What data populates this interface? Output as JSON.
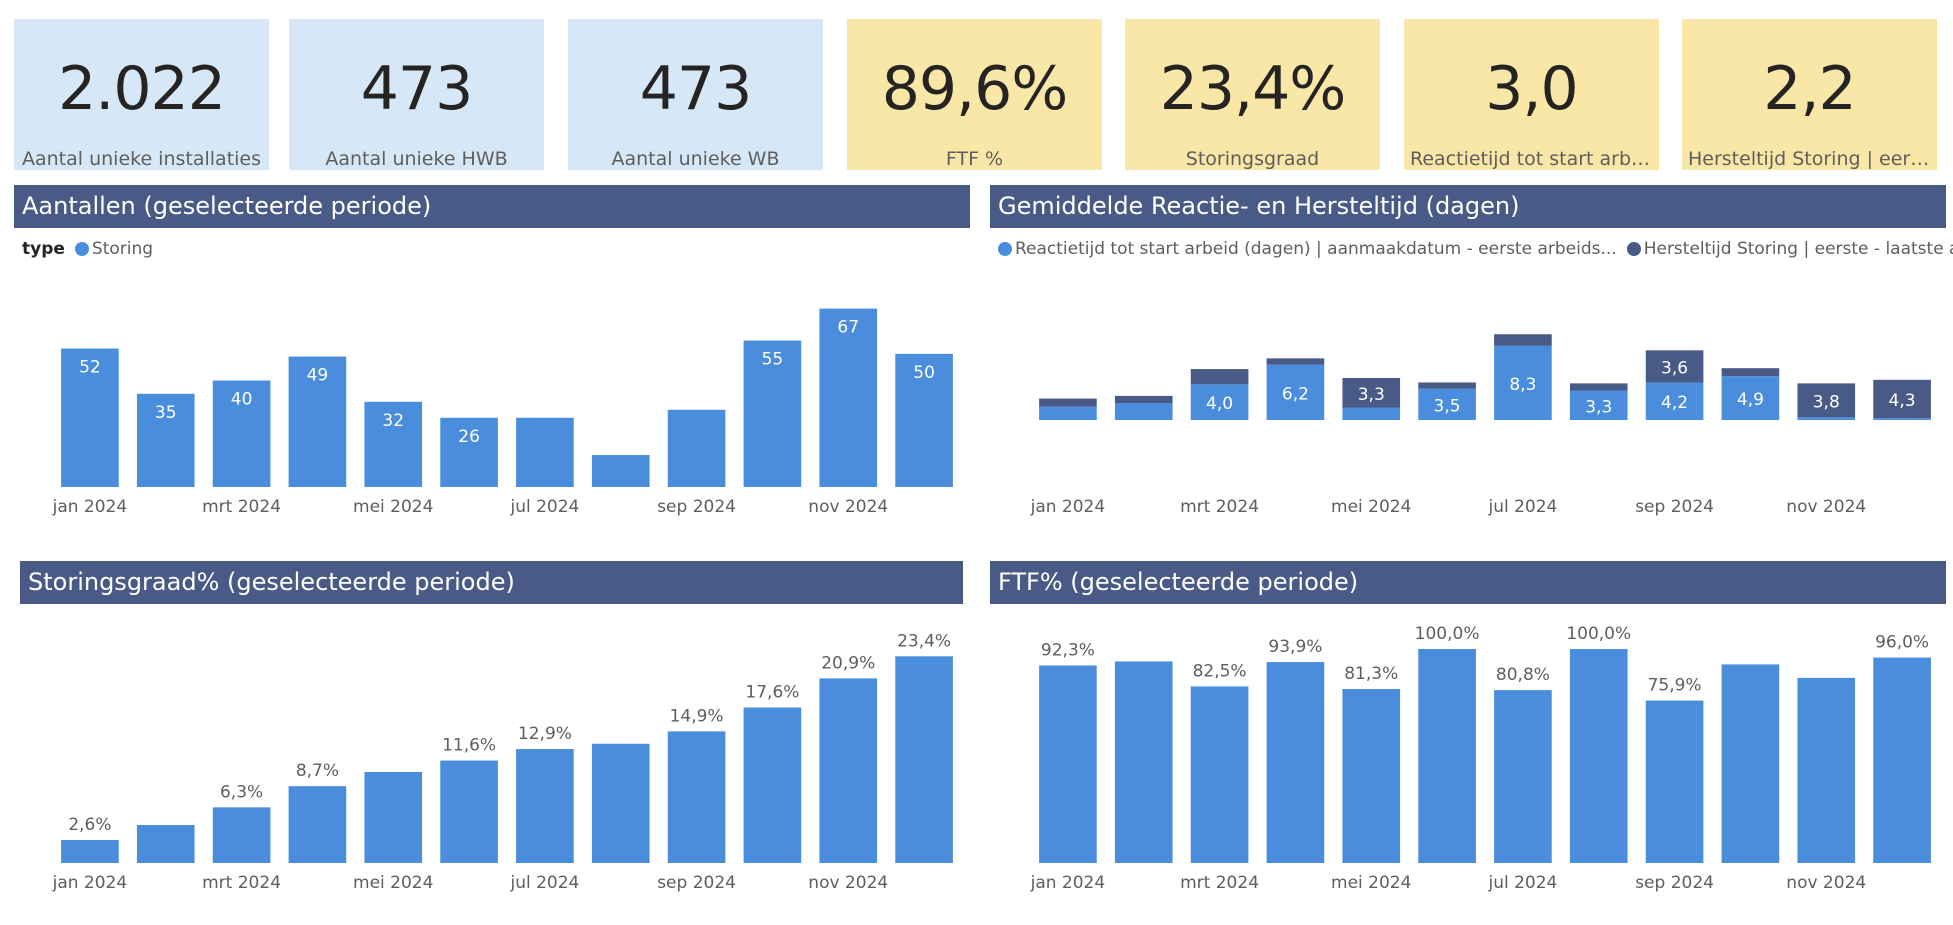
{
  "kpis": [
    {
      "value": "2.022",
      "label": "Aantal unieke installaties",
      "tone": "blue"
    },
    {
      "value": "473",
      "label": "Aantal unieke HWB",
      "tone": "blue"
    },
    {
      "value": "473",
      "label": "Aantal unieke WB",
      "tone": "blue"
    },
    {
      "value": "89,6%",
      "label": "FTF %",
      "tone": "yellow"
    },
    {
      "value": "23,4%",
      "label": "Storingsgraad",
      "tone": "yellow"
    },
    {
      "value": "3,0",
      "label": "Reactietijd tot start arbei...",
      "tone": "yellow"
    },
    {
      "value": "2,2",
      "label": "Hersteltijd Storing | eerst...",
      "tone": "yellow"
    }
  ],
  "panels": {
    "aantallen": {
      "title": "Aantallen (geselecteerde periode)",
      "legend_title": "type",
      "legend_items": [
        "Storing"
      ]
    },
    "reactie": {
      "title": "Gemiddelde Reactie- en Hersteltijd (dagen)",
      "legend_items": [
        "Reactietijd tot start arbeid (dagen) | aanmaakdatum - eerste arbeids...",
        "Hersteltijd Storing | eerste - laatste ar..."
      ]
    },
    "storingsgraad": {
      "title": "Storingsgraad% (geselecteerde periode)"
    },
    "ftf": {
      "title": "FTF% (geselecteerde periode)"
    }
  },
  "colors": {
    "primary": "#4a8ddc",
    "secondary": "#4a5a86",
    "header": "#4a5a86"
  },
  "chart_data": [
    {
      "id": "aantallen",
      "type": "bar",
      "categories": [
        "jan 2024",
        "feb 2024",
        "mrt 2024",
        "apr 2024",
        "mei 2024",
        "jun 2024",
        "jul 2024",
        "aug 2024",
        "sep 2024",
        "okt 2024",
        "nov 2024",
        "dec 2024"
      ],
      "x_tick_labels": [
        "jan 2024",
        "",
        "mrt 2024",
        "",
        "mei 2024",
        "",
        "jul 2024",
        "",
        "sep 2024",
        "",
        "nov 2024",
        ""
      ],
      "series": [
        {
          "name": "Storing",
          "values": [
            52,
            35,
            40,
            49,
            32,
            26,
            26,
            12,
            29,
            55,
            67,
            50
          ]
        }
      ],
      "data_labels": [
        "52",
        "35",
        "40",
        "49",
        "32",
        "26",
        "",
        "",
        "",
        "55",
        "67",
        "50"
      ],
      "ylim": [
        0,
        80
      ]
    },
    {
      "id": "reactie",
      "type": "bar",
      "stacked": true,
      "categories": [
        "jan 2024",
        "feb 2024",
        "mrt 2024",
        "apr 2024",
        "mei 2024",
        "jun 2024",
        "jul 2024",
        "aug 2024",
        "sep 2024",
        "okt 2024",
        "nov 2024",
        "dec 2024"
      ],
      "x_tick_labels": [
        "jan 2024",
        "",
        "mrt 2024",
        "",
        "mei 2024",
        "",
        "jul 2024",
        "",
        "sep 2024",
        "",
        "nov 2024",
        ""
      ],
      "series": [
        {
          "name": "Reactietijd tot start arbeid (dagen) | aanmaakdatum - eerste arbeids...",
          "values": [
            1.5,
            1.9,
            4.0,
            6.2,
            1.4,
            3.5,
            8.3,
            3.3,
            4.2,
            4.9,
            0.3,
            0.2
          ],
          "data_labels": [
            "",
            "",
            "4,0",
            "6,2",
            "",
            "3,5",
            "8,3",
            "3,3",
            "4,2",
            "4,9",
            "",
            ""
          ]
        },
        {
          "name": "Hersteltijd Storing | eerste - laatste ar...",
          "values": [
            0.9,
            0.8,
            1.7,
            0.7,
            3.3,
            0.7,
            1.3,
            0.8,
            3.6,
            0.9,
            3.8,
            4.3
          ],
          "data_labels": [
            "",
            "",
            "",
            "",
            "3,3",
            "",
            "",
            "",
            "3,6",
            "",
            "3,8",
            "4,3"
          ]
        }
      ],
      "ylim": [
        -3,
        12
      ]
    },
    {
      "id": "storingsgraad",
      "type": "bar",
      "categories": [
        "jan 2024",
        "feb 2024",
        "mrt 2024",
        "apr 2024",
        "mei 2024",
        "jun 2024",
        "jul 2024",
        "aug 2024",
        "sep 2024",
        "okt 2024",
        "nov 2024",
        "dec 2024"
      ],
      "x_tick_labels": [
        "jan 2024",
        "",
        "mrt 2024",
        "",
        "mei 2024",
        "",
        "jul 2024",
        "",
        "sep 2024",
        "",
        "nov 2024",
        ""
      ],
      "series": [
        {
          "name": "Storingsgraad",
          "values": [
            2.6,
            4.3,
            6.3,
            8.7,
            10.3,
            11.6,
            12.9,
            13.5,
            14.9,
            17.6,
            20.9,
            23.4
          ]
        }
      ],
      "data_labels": [
        "2,6%",
        "",
        "6,3%",
        "8,7%",
        "",
        "11,6%",
        "12,9%",
        "",
        "14,9%",
        "17,6%",
        "20,9%",
        "23,4%"
      ],
      "ylim": [
        0,
        24
      ]
    },
    {
      "id": "ftf",
      "type": "bar",
      "categories": [
        "jan 2024",
        "feb 2024",
        "mrt 2024",
        "apr 2024",
        "mei 2024",
        "jun 2024",
        "jul 2024",
        "aug 2024",
        "sep 2024",
        "okt 2024",
        "nov 2024",
        "dec 2024"
      ],
      "x_tick_labels": [
        "jan 2024",
        "",
        "mrt 2024",
        "",
        "mei 2024",
        "",
        "jul 2024",
        "",
        "sep 2024",
        "",
        "nov 2024",
        ""
      ],
      "series": [
        {
          "name": "FTF",
          "values": [
            92.3,
            94.2,
            82.5,
            93.9,
            81.3,
            100,
            80.8,
            100,
            75.9,
            92.8,
            86.5,
            96.0
          ]
        }
      ],
      "data_labels": [
        "92,3%",
        "",
        "82,5%",
        "93,9%",
        "81,3%",
        "100,0%",
        "80,8%",
        "100,0%",
        "75,9%",
        "",
        "",
        "96,0%"
      ],
      "ylim": [
        0,
        100
      ]
    }
  ]
}
